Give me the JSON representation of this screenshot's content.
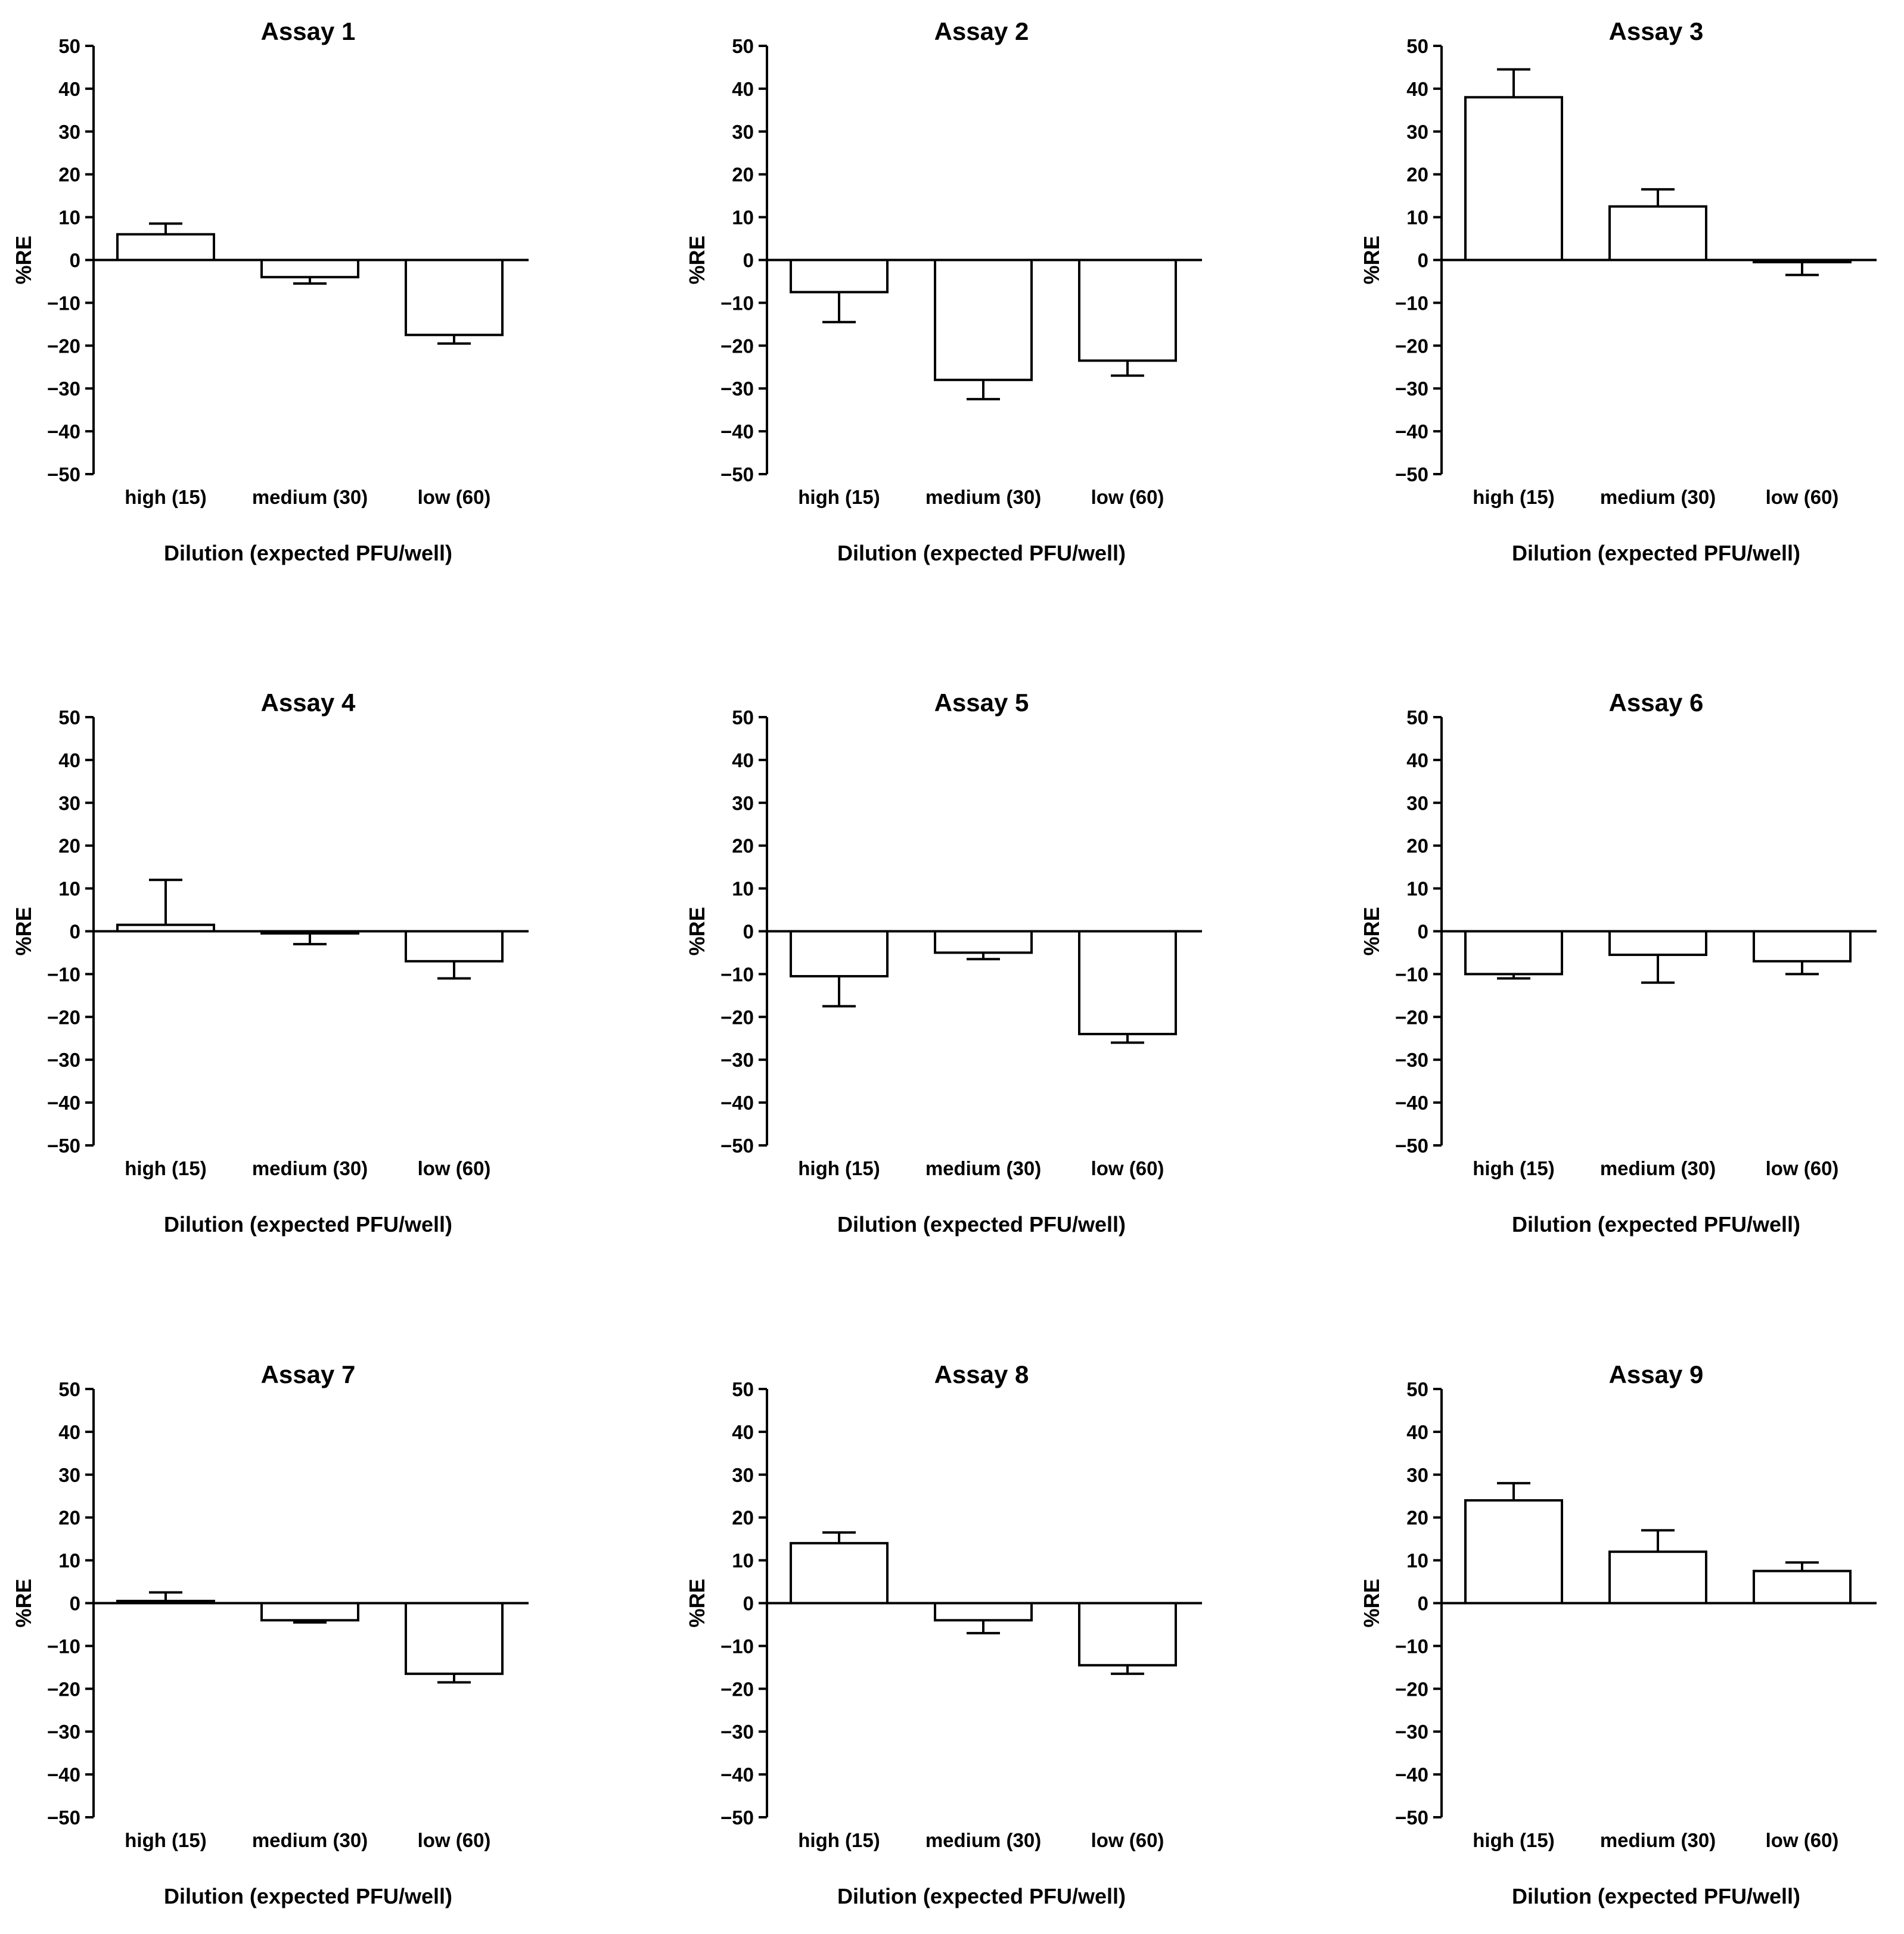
{
  "chart_data": [
    {
      "type": "bar",
      "title": "Assay 1",
      "xlabel": "Dilution (expected PFU/well)",
      "ylabel": "%RE",
      "ylim": [
        -50,
        50
      ],
      "yticks": [
        50,
        40,
        30,
        20,
        10,
        0,
        -10,
        -20,
        -30,
        -40,
        -50
      ],
      "yticklabels": [
        "50",
        "40",
        "30",
        "20",
        "10",
        "0",
        "−10",
        "−20",
        "−30",
        "−40",
        "−50"
      ],
      "categories": [
        "high (15)",
        "medium (30)",
        "low (60)"
      ],
      "values": [
        6,
        -4,
        -17.5
      ],
      "error": [
        2.5,
        1.5,
        2
      ]
    },
    {
      "type": "bar",
      "title": "Assay 2",
      "xlabel": "Dilution (expected PFU/well)",
      "ylabel": "%RE",
      "ylim": [
        -50,
        50
      ],
      "yticks": [
        50,
        40,
        30,
        20,
        10,
        0,
        -10,
        -20,
        -30,
        -40,
        -50
      ],
      "yticklabels": [
        "50",
        "40",
        "30",
        "20",
        "10",
        "0",
        "−10",
        "−20",
        "−30",
        "−40",
        "−50"
      ],
      "categories": [
        "high (15)",
        "medium (30)",
        "low (60)"
      ],
      "values": [
        -7.5,
        -28,
        -23.5
      ],
      "error": [
        7,
        4.5,
        3.5
      ]
    },
    {
      "type": "bar",
      "title": "Assay 3",
      "xlabel": "Dilution (expected PFU/well)",
      "ylabel": "%RE",
      "ylim": [
        -50,
        50
      ],
      "yticks": [
        50,
        40,
        30,
        20,
        10,
        0,
        -10,
        -20,
        -30,
        -40,
        -50
      ],
      "yticklabels": [
        "50",
        "40",
        "30",
        "20",
        "10",
        "0",
        "−10",
        "−20",
        "−30",
        "−40",
        "−50"
      ],
      "categories": [
        "high (15)",
        "medium (30)",
        "low (60)"
      ],
      "values": [
        38,
        12.5,
        -0.5
      ],
      "error": [
        6.5,
        4,
        3
      ]
    },
    {
      "type": "bar",
      "title": "Assay 4",
      "xlabel": "Dilution (expected PFU/well)",
      "ylabel": "%RE",
      "ylim": [
        -50,
        50
      ],
      "yticks": [
        50,
        40,
        30,
        20,
        10,
        0,
        -10,
        -20,
        -30,
        -40,
        -50
      ],
      "yticklabels": [
        "50",
        "40",
        "30",
        "20",
        "10",
        "0",
        "−10",
        "−20",
        "−30",
        "−40",
        "−50"
      ],
      "categories": [
        "high (15)",
        "medium (30)",
        "low (60)"
      ],
      "values": [
        1.5,
        -0.5,
        -7
      ],
      "error": [
        10.5,
        2.5,
        4
      ]
    },
    {
      "type": "bar",
      "title": "Assay 5",
      "xlabel": "Dilution (expected PFU/well)",
      "ylabel": "%RE",
      "ylim": [
        -50,
        50
      ],
      "yticks": [
        50,
        40,
        30,
        20,
        10,
        0,
        -10,
        -20,
        -30,
        -40,
        -50
      ],
      "yticklabels": [
        "50",
        "40",
        "30",
        "20",
        "10",
        "0",
        "−10",
        "−20",
        "−30",
        "−40",
        "−50"
      ],
      "categories": [
        "high (15)",
        "medium (30)",
        "low (60)"
      ],
      "values": [
        -10.5,
        -5,
        -24
      ],
      "error": [
        7,
        1.5,
        2
      ]
    },
    {
      "type": "bar",
      "title": "Assay 6",
      "xlabel": "Dilution (expected PFU/well)",
      "ylabel": "%RE",
      "ylim": [
        -50,
        50
      ],
      "yticks": [
        50,
        40,
        30,
        20,
        10,
        0,
        -10,
        -20,
        -30,
        -40,
        -50
      ],
      "yticklabels": [
        "50",
        "40",
        "30",
        "20",
        "10",
        "0",
        "−10",
        "−20",
        "−30",
        "−40",
        "−50"
      ],
      "categories": [
        "high (15)",
        "medium (30)",
        "low (60)"
      ],
      "values": [
        -10,
        -5.5,
        -7
      ],
      "error": [
        1,
        6.5,
        3
      ]
    },
    {
      "type": "bar",
      "title": "Assay 7",
      "xlabel": "Dilution (expected PFU/well)",
      "ylabel": "%RE",
      "ylim": [
        -50,
        50
      ],
      "yticks": [
        50,
        40,
        30,
        20,
        10,
        0,
        -10,
        -20,
        -30,
        -40,
        -50
      ],
      "yticklabels": [
        "50",
        "40",
        "30",
        "20",
        "10",
        "0",
        "−10",
        "−20",
        "−30",
        "−40",
        "−50"
      ],
      "categories": [
        "high (15)",
        "medium (30)",
        "low (60)"
      ],
      "values": [
        0.5,
        -4,
        -16.5
      ],
      "error": [
        2,
        0.5,
        2
      ]
    },
    {
      "type": "bar",
      "title": "Assay 8",
      "xlabel": "Dilution (expected PFU/well)",
      "ylabel": "%RE",
      "ylim": [
        -50,
        50
      ],
      "yticks": [
        50,
        40,
        30,
        20,
        10,
        0,
        -10,
        -20,
        -30,
        -40,
        -50
      ],
      "yticklabels": [
        "50",
        "40",
        "30",
        "20",
        "10",
        "0",
        "−10",
        "−20",
        "−30",
        "−40",
        "−50"
      ],
      "categories": [
        "high (15)",
        "medium (30)",
        "low (60)"
      ],
      "values": [
        14,
        -4,
        -14.5
      ],
      "error": [
        2.5,
        3,
        2
      ]
    },
    {
      "type": "bar",
      "title": "Assay 9",
      "xlabel": "Dilution (expected PFU/well)",
      "ylabel": "%RE",
      "ylim": [
        -50,
        50
      ],
      "yticks": [
        50,
        40,
        30,
        20,
        10,
        0,
        -10,
        -20,
        -30,
        -40,
        -50
      ],
      "yticklabels": [
        "50",
        "40",
        "30",
        "20",
        "10",
        "0",
        "−10",
        "−20",
        "−30",
        "−40",
        "−50"
      ],
      "categories": [
        "high (15)",
        "medium (30)",
        "low (60)"
      ],
      "values": [
        24,
        12,
        7.5
      ],
      "error": [
        4,
        5,
        2
      ]
    }
  ]
}
